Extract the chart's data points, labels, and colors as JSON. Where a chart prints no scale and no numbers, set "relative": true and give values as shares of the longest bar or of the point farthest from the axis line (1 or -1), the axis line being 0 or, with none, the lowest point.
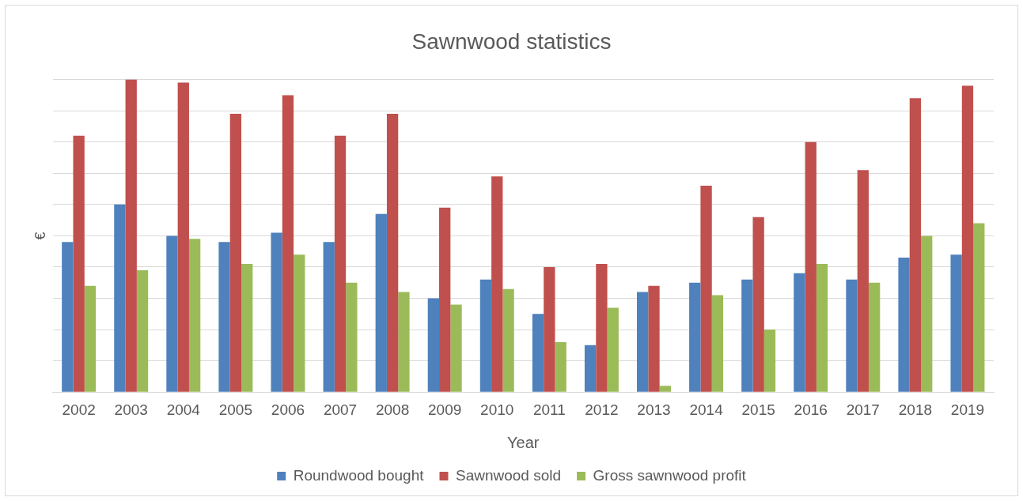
{
  "chart_data": {
    "type": "bar",
    "title": "Sawnwood statistics",
    "xlabel": "Year",
    "ylabel": "€",
    "relative": true,
    "grid": "y",
    "legend": "bottom",
    "categories": [
      "2002",
      "2003",
      "2004",
      "2005",
      "2006",
      "2007",
      "2008",
      "2009",
      "2010",
      "2011",
      "2012",
      "2013",
      "2014",
      "2015",
      "2016",
      "2017",
      "2018",
      "2019"
    ],
    "series": [
      {
        "name": "Roundwood bought",
        "color": "#4f81bd",
        "values": [
          0.48,
          0.6,
          0.5,
          0.48,
          0.51,
          0.48,
          0.57,
          0.3,
          0.36,
          0.25,
          0.15,
          0.32,
          0.35,
          0.36,
          0.38,
          0.36,
          0.43,
          0.44
        ]
      },
      {
        "name": "Sawnwood sold",
        "color": "#c0504d",
        "values": [
          0.82,
          1.0,
          0.99,
          0.89,
          0.95,
          0.82,
          0.89,
          0.59,
          0.69,
          0.4,
          0.41,
          0.34,
          0.66,
          0.56,
          0.8,
          0.71,
          0.94,
          0.98
        ]
      },
      {
        "name": "Gross sawnwood profit",
        "color": "#9bbb59",
        "values": [
          0.34,
          0.39,
          0.49,
          0.41,
          0.44,
          0.35,
          0.32,
          0.28,
          0.33,
          0.16,
          0.27,
          0.02,
          0.31,
          0.2,
          0.41,
          0.35,
          0.5,
          0.54
        ]
      }
    ]
  }
}
